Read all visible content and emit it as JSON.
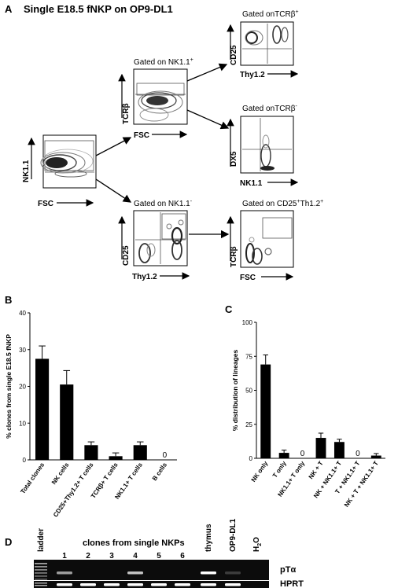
{
  "panel_a": {
    "letter": "A",
    "title": "Single E18.5 fNKP on OP9-DL1",
    "first_plot": {
      "y_label": "NK1.1",
      "x_label": "FSC"
    },
    "gate_nk_pos": {
      "title": "Gated on NK1.1",
      "title_sup": "+",
      "y_label": "TCRβ",
      "x_label": "FSC"
    },
    "gate_tcr_pos": {
      "title": "Gated onTCRβ",
      "title_sup": "+",
      "y_label": "CD25",
      "x_label": "Thy1.2"
    },
    "gate_tcr_neg": {
      "title": "Gated onTCRβ",
      "title_sup": "-",
      "y_label": "DX5",
      "x_label": "NK1.1"
    },
    "gate_nk_neg": {
      "title": "Gated on NK1.1",
      "title_sup": "-",
      "y_label": "CD25",
      "x_label": "Thy1.2"
    },
    "gate_cd25": {
      "title": "Gated on CD25",
      "title_sup": "+",
      "title_rest": "Th1.2",
      "title_sup2": "+",
      "y_label": "TCRβ",
      "x_label": "FSC"
    }
  },
  "chart_data": [
    {
      "panel": "B",
      "type": "bar",
      "ylabel": "% clones from single E18.5 fNKP",
      "ylim": [
        0,
        40
      ],
      "yticks": [
        0,
        10,
        20,
        30,
        40
      ],
      "categories": [
        "Total clones",
        "NK cells",
        "CD25+Thy1.2+ T cells",
        "TCRβ+ T cells",
        "NK1.1+ T cells",
        "B cells"
      ],
      "values": [
        27.5,
        20.5,
        4,
        1,
        4,
        0
      ],
      "errors": [
        3.5,
        3.8,
        0.9,
        0.9,
        0.9,
        0
      ],
      "value_labels": [
        "",
        "",
        "",
        "",
        "",
        "0"
      ]
    },
    {
      "panel": "C",
      "type": "bar",
      "ylabel": "% distribution of lineages",
      "ylim": [
        0,
        100
      ],
      "yticks": [
        0,
        25,
        50,
        75,
        100
      ],
      "categories": [
        "NK only",
        "T only",
        "NK1.1+ T only",
        "NK + T",
        "NK + NK1.1+ T",
        "T + NK1.1+ T",
        "NK + T + NK1.1+ T"
      ],
      "values": [
        69,
        4,
        0,
        15,
        12,
        0,
        2
      ],
      "errors": [
        7,
        2,
        0,
        3.5,
        2,
        0,
        1.5
      ],
      "value_labels": [
        "",
        "",
        "0",
        "",
        "",
        "0",
        ""
      ]
    }
  ],
  "panel_b_letter": "B",
  "panel_c_letter": "C",
  "panel_d": {
    "letter": "D",
    "clones_header": "clones from single NKPs",
    "lanes": [
      "ladder",
      "1",
      "2",
      "3",
      "4",
      "5",
      "6",
      "thymus",
      "OP9-DL1",
      "H",
      "2",
      "O"
    ],
    "row_labels": [
      "pTα",
      "HPRT"
    ],
    "bands_pta": [
      0,
      0.6,
      0,
      0,
      0.75,
      0,
      0,
      1,
      0.2,
      0
    ],
    "bands_hprt": [
      0,
      1,
      1,
      1,
      1,
      1,
      1,
      1,
      1,
      0
    ]
  }
}
